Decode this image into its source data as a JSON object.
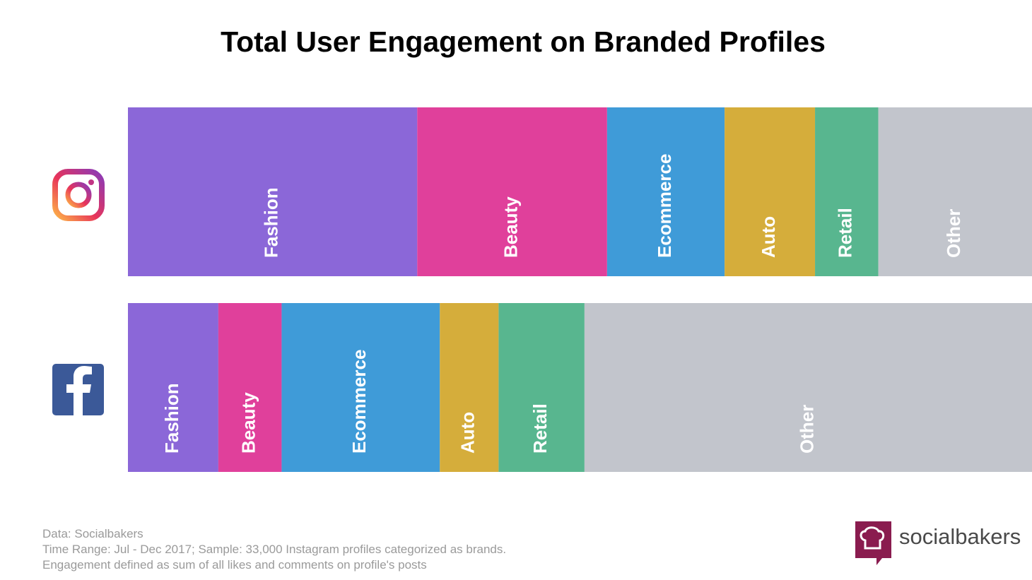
{
  "chart_data": {
    "type": "stacked-bar-horizontal",
    "title": "Total User Engagement on Branded Profiles",
    "categories": [
      null,
      null
    ],
    "series": [
      {
        "name": "Fashion",
        "color": "#8b67d8",
        "values": [
          32,
          10
        ]
      },
      {
        "name": "Beauty",
        "color": "#e0409b",
        "values": [
          21,
          7
        ]
      },
      {
        "name": "Ecommerce",
        "color": "#3f9bd8",
        "values": [
          13,
          17.5
        ]
      },
      {
        "name": "Auto",
        "color": "#d5ad3b",
        "values": [
          10,
          6.5
        ]
      },
      {
        "name": "Retail",
        "color": "#58b68f",
        "values": [
          7,
          9.5
        ]
      },
      {
        "name": "Other",
        "color": "#c2c5cc",
        "values": [
          17,
          49.5
        ]
      }
    ],
    "notes": [
      "Data: Socialbakers",
      "Time Range: Jul - Dec 2017; Sample: 33,000 Instagram profiles categorized as brands.",
      "Engagement defined as sum of all likes and comments on profile's posts"
    ],
    "brand": "socialbakers"
  }
}
